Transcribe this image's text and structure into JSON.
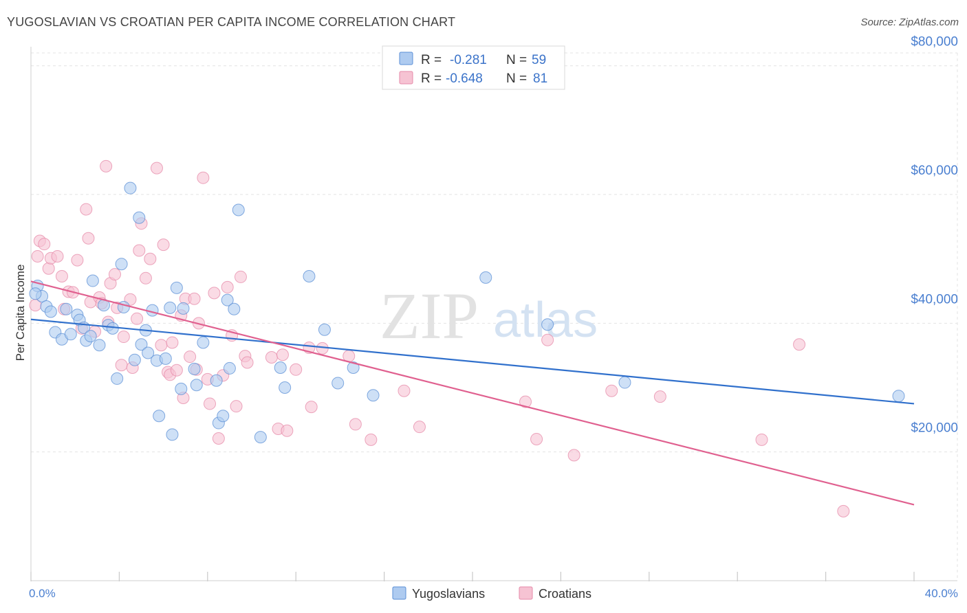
{
  "title": "YUGOSLAVIAN VS CROATIAN PER CAPITA INCOME CORRELATION CHART",
  "source": "Source: ZipAtlas.com",
  "watermark": {
    "part1": "ZIP",
    "part2": "atlas"
  },
  "legend": {
    "rows": [
      {
        "r_label": "R =",
        "r_value": "-0.281",
        "n_label": "N =",
        "n_value": "59"
      },
      {
        "r_label": "R =",
        "r_value": "-0.648",
        "n_label": "N =",
        "n_value": "81"
      }
    ]
  },
  "colors": {
    "yugoslavians_fill": "#aecbf0",
    "yugoslavians_stroke": "#5b8fd6",
    "yugoslavians_line": "#3070cc",
    "croatians_fill": "#f6c3d3",
    "croatians_stroke": "#e58aa8",
    "croatians_line": "#e0608f",
    "grid": "#e3e3e3",
    "axis_text": "#4a7fd0"
  },
  "chart_data": {
    "type": "scatter",
    "title": "YUGOSLAVIAN VS CROATIAN PER CAPITA INCOME CORRELATION CHART",
    "xlabel": "",
    "ylabel": "Per Capita Income",
    "xlim": [
      0,
      40
    ],
    "ylim": [
      0,
      82000
    ],
    "x_tick_labels": [
      {
        "value": 0,
        "label": "0.0%"
      },
      {
        "value": 40,
        "label": "40.0%"
      }
    ],
    "y_tick_labels": [
      {
        "value": 20000,
        "label": "$20,000"
      },
      {
        "value": 40000,
        "label": "$40,000"
      },
      {
        "value": 60000,
        "label": "$60,000"
      },
      {
        "value": 80000,
        "label": "$80,000"
      }
    ],
    "grid": true,
    "legend_position": "top-center",
    "series": [
      {
        "name": "Yugoslavians",
        "r": -0.281,
        "n": 59,
        "trend": {
          "x": [
            0,
            40
          ],
          "y": [
            40600,
            27500
          ]
        },
        "points": [
          [
            0.3,
            45800
          ],
          [
            0.5,
            44200
          ],
          [
            0.7,
            42600
          ],
          [
            0.9,
            41800
          ],
          [
            1.1,
            38600
          ],
          [
            1.4,
            37500
          ],
          [
            1.6,
            42200
          ],
          [
            1.8,
            38300
          ],
          [
            2.1,
            41300
          ],
          [
            2.2,
            40500
          ],
          [
            2.4,
            39300
          ],
          [
            2.5,
            37300
          ],
          [
            2.7,
            38000
          ],
          [
            2.8,
            46600
          ],
          [
            3.1,
            36600
          ],
          [
            3.3,
            42800
          ],
          [
            3.5,
            39700
          ],
          [
            3.7,
            39200
          ],
          [
            3.9,
            31400
          ],
          [
            4.1,
            49200
          ],
          [
            4.2,
            42500
          ],
          [
            4.5,
            61000
          ],
          [
            4.7,
            34300
          ],
          [
            4.9,
            56400
          ],
          [
            5.0,
            36700
          ],
          [
            5.2,
            38900
          ],
          [
            5.3,
            35400
          ],
          [
            5.5,
            42000
          ],
          [
            5.7,
            34200
          ],
          [
            5.8,
            25600
          ],
          [
            6.1,
            34500
          ],
          [
            6.4,
            22700
          ],
          [
            6.6,
            45500
          ],
          [
            6.3,
            42400
          ],
          [
            6.9,
            42300
          ],
          [
            6.8,
            29800
          ],
          [
            7.4,
            32900
          ],
          [
            7.5,
            30400
          ],
          [
            7.8,
            37000
          ],
          [
            8.4,
            31100
          ],
          [
            8.5,
            24500
          ],
          [
            8.7,
            25600
          ],
          [
            8.9,
            43600
          ],
          [
            9.2,
            42200
          ],
          [
            9.4,
            57600
          ],
          [
            9.0,
            33000
          ],
          [
            10.4,
            22300
          ],
          [
            11.3,
            33100
          ],
          [
            11.5,
            30000
          ],
          [
            12.6,
            47300
          ],
          [
            13.3,
            39000
          ],
          [
            13.9,
            30700
          ],
          [
            14.6,
            33100
          ],
          [
            15.5,
            28800
          ],
          [
            20.6,
            47100
          ],
          [
            23.4,
            39800
          ],
          [
            26.9,
            30800
          ],
          [
            39.3,
            28700
          ],
          [
            0.2,
            44600
          ]
        ]
      },
      {
        "name": "Croatians",
        "r": -0.648,
        "n": 81,
        "trend": {
          "x": [
            0,
            40
          ],
          "y": [
            46500,
            11800
          ]
        },
        "points": [
          [
            0.2,
            42800
          ],
          [
            0.3,
            50400
          ],
          [
            0.4,
            52800
          ],
          [
            0.6,
            52300
          ],
          [
            0.8,
            48500
          ],
          [
            0.9,
            50100
          ],
          [
            1.2,
            50400
          ],
          [
            1.4,
            47300
          ],
          [
            1.5,
            42200
          ],
          [
            1.7,
            44900
          ],
          [
            1.9,
            44800
          ],
          [
            2.1,
            49800
          ],
          [
            2.3,
            39200
          ],
          [
            2.5,
            57700
          ],
          [
            2.6,
            53200
          ],
          [
            2.7,
            43300
          ],
          [
            2.9,
            38700
          ],
          [
            3.1,
            44000
          ],
          [
            3.2,
            43100
          ],
          [
            3.4,
            64400
          ],
          [
            3.5,
            40200
          ],
          [
            3.6,
            46200
          ],
          [
            3.8,
            47600
          ],
          [
            3.9,
            42400
          ],
          [
            4.1,
            33500
          ],
          [
            4.2,
            37900
          ],
          [
            4.5,
            43700
          ],
          [
            4.6,
            33100
          ],
          [
            4.8,
            40700
          ],
          [
            4.9,
            51300
          ],
          [
            5.0,
            55500
          ],
          [
            5.2,
            47000
          ],
          [
            5.4,
            50000
          ],
          [
            5.7,
            64100
          ],
          [
            5.9,
            36600
          ],
          [
            6.0,
            52200
          ],
          [
            6.2,
            32400
          ],
          [
            6.3,
            32000
          ],
          [
            6.4,
            37000
          ],
          [
            6.6,
            32700
          ],
          [
            6.8,
            41200
          ],
          [
            6.9,
            28400
          ],
          [
            7.0,
            43800
          ],
          [
            7.2,
            34800
          ],
          [
            7.4,
            43800
          ],
          [
            7.5,
            32800
          ],
          [
            7.6,
            40000
          ],
          [
            7.8,
            62600
          ],
          [
            8.0,
            31300
          ],
          [
            8.1,
            27500
          ],
          [
            8.3,
            44700
          ],
          [
            8.5,
            22100
          ],
          [
            8.7,
            31900
          ],
          [
            8.9,
            45600
          ],
          [
            9.1,
            38100
          ],
          [
            9.3,
            27100
          ],
          [
            9.5,
            47200
          ],
          [
            9.7,
            34900
          ],
          [
            9.8,
            33900
          ],
          [
            10.9,
            34700
          ],
          [
            11.2,
            23600
          ],
          [
            11.4,
            35100
          ],
          [
            11.6,
            23300
          ],
          [
            12.0,
            32800
          ],
          [
            12.6,
            36200
          ],
          [
            12.7,
            27000
          ],
          [
            13.2,
            36100
          ],
          [
            14.4,
            34900
          ],
          [
            14.7,
            24300
          ],
          [
            15.4,
            21900
          ],
          [
            16.9,
            29500
          ],
          [
            17.6,
            23900
          ],
          [
            22.4,
            27800
          ],
          [
            22.9,
            22000
          ],
          [
            23.4,
            37400
          ],
          [
            24.6,
            19500
          ],
          [
            26.3,
            29500
          ],
          [
            28.5,
            28600
          ],
          [
            33.1,
            21900
          ],
          [
            34.8,
            36700
          ],
          [
            36.8,
            10800
          ]
        ]
      }
    ]
  },
  "bottom_legend": [
    "Yugoslavians",
    "Croatians"
  ]
}
